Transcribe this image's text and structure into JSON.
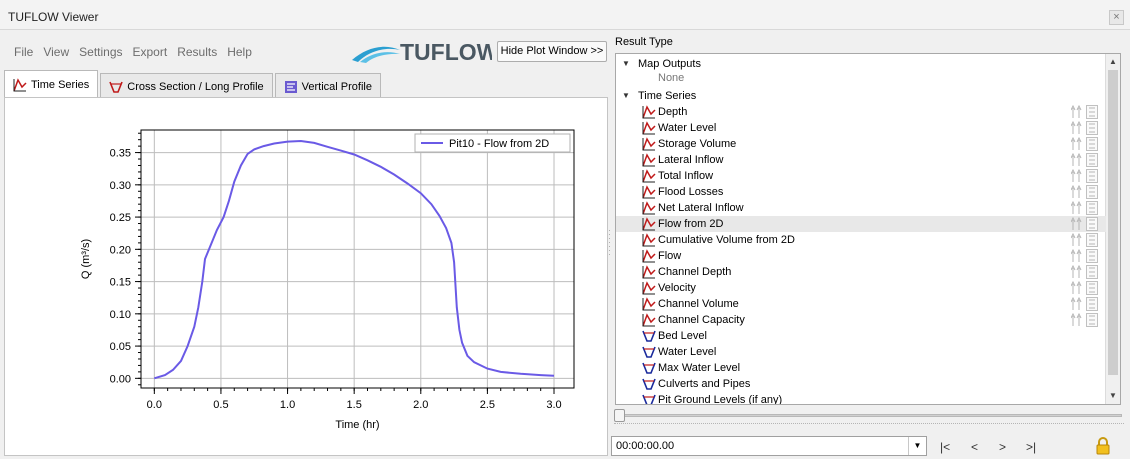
{
  "window": {
    "title": "TUFLOW Viewer",
    "close_glyph": "×"
  },
  "menu": [
    "File",
    "View",
    "Settings",
    "Export",
    "Results",
    "Help"
  ],
  "logo_text": "TUFLOW",
  "hide_plot_label": "Hide Plot Window >>",
  "tabs": [
    {
      "label": "Time Series",
      "icon": "timeseries-icon",
      "active": true
    },
    {
      "label": "Cross Section / Long Profile",
      "icon": "cross-section-icon",
      "active": false
    },
    {
      "label": "Vertical Profile",
      "icon": "vertical-profile-icon",
      "active": false
    }
  ],
  "chart_data": {
    "type": "line",
    "xlabel": "Time (hr)",
    "ylabel": "Q (m³/s)",
    "xlim": [
      -0.1,
      3.15
    ],
    "ylim": [
      -0.015,
      0.385
    ],
    "xticks": [
      "0.0",
      "0.5",
      "1.0",
      "1.5",
      "2.0",
      "2.5",
      "3.0"
    ],
    "xtick_values": [
      0.0,
      0.5,
      1.0,
      1.5,
      2.0,
      2.5,
      3.0
    ],
    "yticks": [
      "0.00",
      "0.05",
      "0.10",
      "0.15",
      "0.20",
      "0.25",
      "0.30",
      "0.35"
    ],
    "ytick_values": [
      0.0,
      0.05,
      0.1,
      0.15,
      0.2,
      0.25,
      0.3,
      0.35
    ],
    "grid": true,
    "legend": "top-right",
    "series": [
      {
        "name": "Pit10 - Flow from 2D",
        "color": "#6a5ae6",
        "x": [
          0.0,
          0.08,
          0.14,
          0.2,
          0.25,
          0.3,
          0.33,
          0.36,
          0.38,
          0.42,
          0.47,
          0.52,
          0.56,
          0.6,
          0.65,
          0.7,
          0.75,
          0.82,
          0.9,
          1.0,
          1.1,
          1.2,
          1.3,
          1.4,
          1.5,
          1.6,
          1.7,
          1.8,
          1.9,
          2.0,
          2.08,
          2.14,
          2.19,
          2.23,
          2.25,
          2.27,
          2.29,
          2.31,
          2.35,
          2.4,
          2.5,
          2.6,
          2.75,
          2.9,
          3.0
        ],
        "values": [
          0.0,
          0.005,
          0.013,
          0.027,
          0.05,
          0.08,
          0.11,
          0.15,
          0.185,
          0.205,
          0.23,
          0.25,
          0.275,
          0.305,
          0.33,
          0.348,
          0.355,
          0.36,
          0.364,
          0.367,
          0.368,
          0.365,
          0.359,
          0.353,
          0.347,
          0.338,
          0.328,
          0.316,
          0.302,
          0.287,
          0.27,
          0.252,
          0.233,
          0.21,
          0.18,
          0.11,
          0.075,
          0.055,
          0.035,
          0.025,
          0.015,
          0.01,
          0.007,
          0.005,
          0.004
        ]
      }
    ]
  },
  "result_type": {
    "label": "Result Type",
    "groups": [
      {
        "label": "Map Outputs",
        "items": [],
        "empty_label": "None"
      },
      {
        "label": "Time Series",
        "items": [
          {
            "label": "Depth",
            "icon": "timeseries-icon"
          },
          {
            "label": "Water Level",
            "icon": "timeseries-icon"
          },
          {
            "label": "Storage Volume",
            "icon": "timeseries-icon"
          },
          {
            "label": "Lateral Inflow",
            "icon": "timeseries-icon"
          },
          {
            "label": "Total Inflow",
            "icon": "timeseries-icon"
          },
          {
            "label": "Flood Losses",
            "icon": "timeseries-icon"
          },
          {
            "label": "Net Lateral Inflow",
            "icon": "timeseries-icon"
          },
          {
            "label": "Flow from 2D",
            "icon": "timeseries-icon",
            "selected": true
          },
          {
            "label": "Cumulative Volume from 2D",
            "icon": "timeseries-icon"
          },
          {
            "label": "Flow",
            "icon": "timeseries-icon"
          },
          {
            "label": "Channel Depth",
            "icon": "timeseries-icon"
          },
          {
            "label": "Velocity",
            "icon": "timeseries-icon"
          },
          {
            "label": "Channel Volume",
            "icon": "timeseries-icon"
          },
          {
            "label": "Channel Capacity",
            "icon": "timeseries-icon"
          },
          {
            "label": "Bed Level",
            "icon": "cross-section-icon"
          },
          {
            "label": "Water Level",
            "icon": "cross-section-icon"
          },
          {
            "label": "Max Water Level",
            "icon": "cross-section-icon"
          },
          {
            "label": "Culverts and Pipes",
            "icon": "cross-section-icon"
          },
          {
            "label": "Pit Ground Levels (if any)",
            "icon": "cross-section-icon"
          }
        ]
      }
    ]
  },
  "time": {
    "value": "00:00:00.00"
  },
  "nav": [
    "|<",
    "<",
    ">",
    ">|"
  ],
  "colors": {
    "accent_line": "#6a5ae6",
    "icon_red": "#c01a1a",
    "icon_blue": "#1a2a9c"
  }
}
